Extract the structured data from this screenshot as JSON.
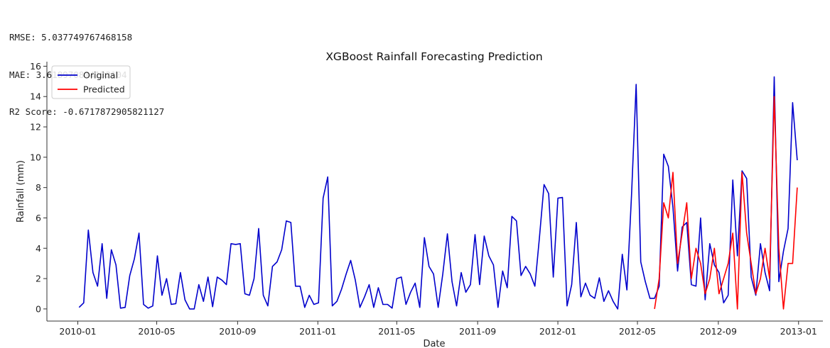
{
  "metrics": {
    "rmse": "RMSE: 5.037749767468158",
    "mae": "MAE: 3.618970814132104",
    "r2": "R2 Score: -0.6717872905821127"
  },
  "chart_data": {
    "type": "line",
    "title": "XGBoost Rainfall Forecasting Prediction",
    "xlabel": "Date",
    "ylabel": "Rainfall (mm)",
    "ylim": [
      -0.8,
      16.3
    ],
    "xlim": [
      "2009-11-15",
      "2013-02-07"
    ],
    "yticks": [
      0,
      2,
      4,
      6,
      8,
      10,
      12,
      14,
      16
    ],
    "xticks": [
      "2010-01",
      "2010-05",
      "2010-09",
      "2011-01",
      "2011-05",
      "2011-09",
      "2012-01",
      "2012-05",
      "2012-09",
      "2013-01"
    ],
    "grid": false,
    "legend_position": "top-left",
    "series": [
      {
        "name": "Original",
        "color": "#0000cc",
        "x": [
          "2010-01-03",
          "2010-01-10",
          "2010-01-17",
          "2010-01-24",
          "2010-01-31",
          "2010-02-07",
          "2010-02-14",
          "2010-02-21",
          "2010-02-28",
          "2010-03-07",
          "2010-03-14",
          "2010-03-21",
          "2010-03-28",
          "2010-04-04",
          "2010-04-11",
          "2010-04-18",
          "2010-04-25",
          "2010-05-02",
          "2010-05-09",
          "2010-05-16",
          "2010-05-23",
          "2010-05-30",
          "2010-06-06",
          "2010-06-13",
          "2010-06-20",
          "2010-06-27",
          "2010-07-04",
          "2010-07-11",
          "2010-07-18",
          "2010-07-25",
          "2010-08-01",
          "2010-08-08",
          "2010-08-15",
          "2010-08-22",
          "2010-08-29",
          "2010-09-05",
          "2010-09-12",
          "2010-09-19",
          "2010-09-26",
          "2010-10-03",
          "2010-10-10",
          "2010-10-17",
          "2010-10-24",
          "2010-10-31",
          "2010-11-07",
          "2010-11-14",
          "2010-11-21",
          "2010-11-28",
          "2010-12-05",
          "2010-12-12",
          "2010-12-19",
          "2010-12-26",
          "2011-01-02",
          "2011-01-09",
          "2011-01-16",
          "2011-01-23",
          "2011-01-30",
          "2011-02-06",
          "2011-02-13",
          "2011-02-20",
          "2011-02-27",
          "2011-03-06",
          "2011-03-13",
          "2011-03-20",
          "2011-03-27",
          "2011-04-03",
          "2011-04-10",
          "2011-04-17",
          "2011-04-24",
          "2011-05-01",
          "2011-05-08",
          "2011-05-15",
          "2011-05-22",
          "2011-05-29",
          "2011-06-05",
          "2011-06-12",
          "2011-06-19",
          "2011-06-26",
          "2011-07-03",
          "2011-07-10",
          "2011-07-17",
          "2011-07-24",
          "2011-07-31",
          "2011-08-07",
          "2011-08-14",
          "2011-08-21",
          "2011-08-28",
          "2011-09-04",
          "2011-09-11",
          "2011-09-18",
          "2011-09-25",
          "2011-10-02",
          "2011-10-09",
          "2011-10-16",
          "2011-10-23",
          "2011-10-30",
          "2011-11-06",
          "2011-11-13",
          "2011-11-20",
          "2011-11-27",
          "2011-12-04",
          "2011-12-11",
          "2011-12-18",
          "2011-12-25",
          "2012-01-01",
          "2012-01-08",
          "2012-01-15",
          "2012-01-22",
          "2012-01-29",
          "2012-02-05",
          "2012-02-12",
          "2012-02-19",
          "2012-02-26",
          "2012-03-04",
          "2012-03-11",
          "2012-03-18",
          "2012-03-25",
          "2012-04-01",
          "2012-04-08",
          "2012-04-15",
          "2012-04-22",
          "2012-04-29",
          "2012-05-06",
          "2012-05-13",
          "2012-05-20",
          "2012-05-27",
          "2012-06-03",
          "2012-06-10",
          "2012-06-17",
          "2012-06-24",
          "2012-07-01",
          "2012-07-08",
          "2012-07-15",
          "2012-07-22",
          "2012-07-29",
          "2012-08-05",
          "2012-08-12",
          "2012-08-19",
          "2012-08-26",
          "2012-09-02",
          "2012-09-09",
          "2012-09-16",
          "2012-09-23",
          "2012-09-30",
          "2012-10-07",
          "2012-10-14",
          "2012-10-21",
          "2012-10-28",
          "2012-11-04",
          "2012-11-11",
          "2012-11-18",
          "2012-11-25",
          "2012-12-02",
          "2012-12-09",
          "2012-12-16",
          "2012-12-23",
          "2012-12-30"
        ],
        "y": [
          0.1,
          0.4,
          5.2,
          2.4,
          1.5,
          4.3,
          0.7,
          3.9,
          2.9,
          0.05,
          0.1,
          2.2,
          3.3,
          5.0,
          0.3,
          0.05,
          0.2,
          3.5,
          0.9,
          2.0,
          0.3,
          0.35,
          2.4,
          0.6,
          0.0,
          0.0,
          1.6,
          0.5,
          2.1,
          0.15,
          2.1,
          1.9,
          1.6,
          4.3,
          4.25,
          4.3,
          1.0,
          0.9,
          2.0,
          5.3,
          0.9,
          0.2,
          2.8,
          3.1,
          3.9,
          5.8,
          5.7,
          1.5,
          1.5,
          0.1,
          0.9,
          0.3,
          0.4,
          7.3,
          8.7,
          0.2,
          0.5,
          1.3,
          2.3,
          3.2,
          1.9,
          0.1,
          0.8,
          1.6,
          0.1,
          1.4,
          0.3,
          0.3,
          0.05,
          2.0,
          2.1,
          0.3,
          1.1,
          1.7,
          0.1,
          4.7,
          2.8,
          2.3,
          0.1,
          2.3,
          4.95,
          1.8,
          0.2,
          2.4,
          1.1,
          1.6,
          4.9,
          1.6,
          4.8,
          3.5,
          2.9,
          0.1,
          2.5,
          1.4,
          6.1,
          5.8,
          2.2,
          2.8,
          2.3,
          1.5,
          4.7,
          8.2,
          7.6,
          2.1,
          7.3,
          7.35,
          0.2,
          1.6,
          5.7,
          0.8,
          1.7,
          0.9,
          0.7,
          2.05,
          0.5,
          1.2,
          0.5,
          0.0,
          3.6,
          1.25,
          7.5,
          14.8,
          3.1,
          1.8,
          0.7,
          0.7,
          1.5,
          10.2,
          9.4,
          6.7,
          2.5,
          5.4,
          5.7,
          1.6,
          1.5,
          6.0,
          0.6,
          4.3,
          2.9,
          2.4,
          0.4,
          0.9,
          8.5,
          3.5,
          9.1,
          8.6,
          2.1,
          0.9,
          4.3,
          2.4,
          1.2,
          15.3,
          1.8,
          3.8,
          5.3,
          13.6,
          9.8
        ]
      },
      {
        "name": "Predicted",
        "color": "#ff0000",
        "x": [
          "2012-05-27",
          "2012-06-03",
          "2012-06-10",
          "2012-06-17",
          "2012-06-24",
          "2012-07-01",
          "2012-07-08",
          "2012-07-15",
          "2012-07-22",
          "2012-07-29",
          "2012-08-05",
          "2012-08-12",
          "2012-08-19",
          "2012-08-26",
          "2012-09-02",
          "2012-09-09",
          "2012-09-16",
          "2012-09-23",
          "2012-09-30",
          "2012-10-07",
          "2012-10-14",
          "2012-10-21",
          "2012-10-28",
          "2012-11-04",
          "2012-11-11",
          "2012-11-18",
          "2012-11-25",
          "2012-12-02",
          "2012-12-09",
          "2012-12-16",
          "2012-12-23",
          "2012-12-30"
        ],
        "y": [
          0.0,
          2.0,
          7.0,
          6.0,
          9.0,
          3.0,
          5.0,
          7.0,
          2.0,
          4.0,
          3.0,
          1.0,
          2.0,
          4.0,
          1.0,
          2.0,
          3.0,
          5.0,
          0.0,
          9.0,
          5.0,
          3.0,
          1.0,
          2.0,
          4.0,
          2.0,
          14.0,
          4.0,
          0.0,
          3.0,
          3.0,
          8.0
        ]
      }
    ]
  }
}
